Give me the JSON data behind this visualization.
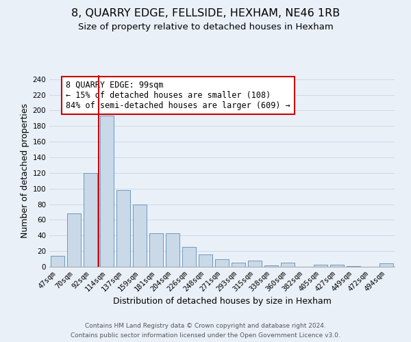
{
  "title": "8, QUARRY EDGE, FELLSIDE, HEXHAM, NE46 1RB",
  "subtitle": "Size of property relative to detached houses in Hexham",
  "xlabel": "Distribution of detached houses by size in Hexham",
  "ylabel": "Number of detached properties",
  "footer_line1": "Contains HM Land Registry data © Crown copyright and database right 2024.",
  "footer_line2": "Contains public sector information licensed under the Open Government Licence v3.0.",
  "bin_labels": [
    "47sqm",
    "70sqm",
    "92sqm",
    "114sqm",
    "137sqm",
    "159sqm",
    "181sqm",
    "204sqm",
    "226sqm",
    "248sqm",
    "271sqm",
    "293sqm",
    "315sqm",
    "338sqm",
    "360sqm",
    "382sqm",
    "405sqm",
    "427sqm",
    "449sqm",
    "472sqm",
    "494sqm"
  ],
  "bar_heights": [
    14,
    68,
    120,
    193,
    98,
    80,
    43,
    43,
    25,
    16,
    10,
    5,
    8,
    2,
    5,
    0,
    3,
    3,
    1,
    0,
    4
  ],
  "bar_color": "#c9d9e8",
  "bar_edge_color": "#5b8db8",
  "vline_color": "#cc0000",
  "annotation_line1": "8 QUARRY EDGE: 99sqm",
  "annotation_line2": "← 15% of detached houses are smaller (108)",
  "annotation_line3": "84% of semi-detached houses are larger (609) →",
  "annotation_box_color": "#ffffff",
  "annotation_box_edge_color": "#cc0000",
  "ylim": [
    0,
    245
  ],
  "yticks": [
    0,
    20,
    40,
    60,
    80,
    100,
    120,
    140,
    160,
    180,
    200,
    220,
    240
  ],
  "grid_color": "#d0d8e4",
  "background_color": "#eaf0f7",
  "title_fontsize": 11.5,
  "subtitle_fontsize": 9.5,
  "axis_label_fontsize": 9,
  "tick_fontsize": 7.5,
  "annotation_fontsize": 8.5,
  "footer_fontsize": 6.5
}
